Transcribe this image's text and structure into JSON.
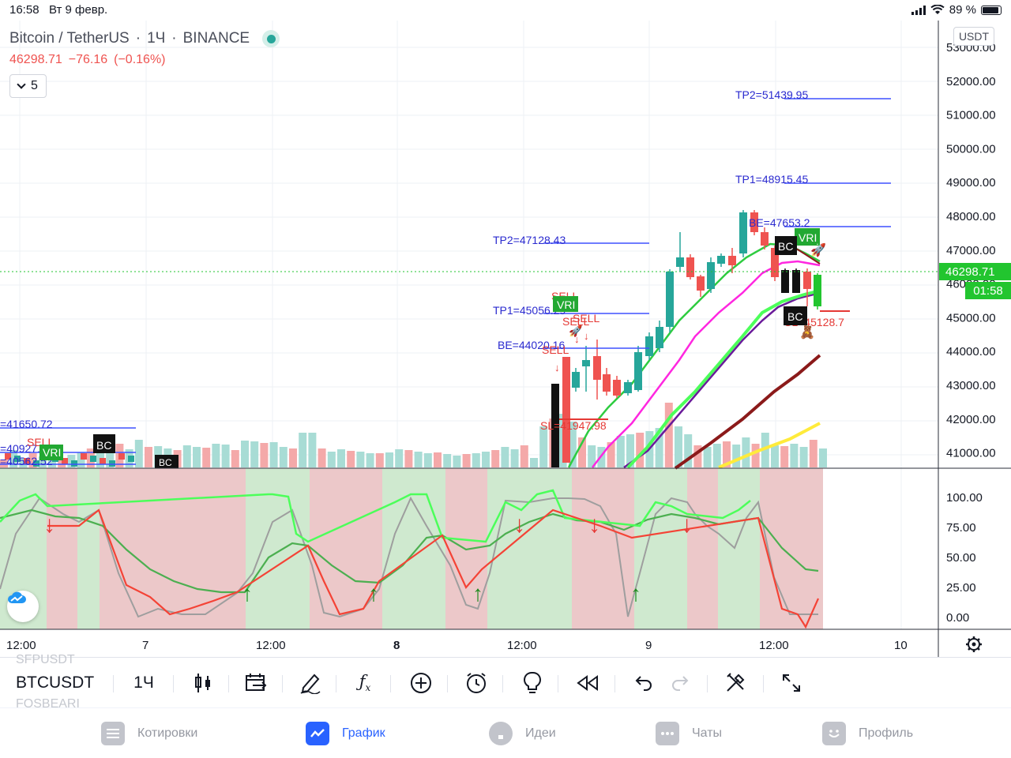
{
  "status_bar": {
    "time": "16:58",
    "date": "Вт 9 февр.",
    "battery": "89 %"
  },
  "legend": {
    "symbol_name": "Bitcoin / TetherUS",
    "interval": "1Ч",
    "exchange": "BINANCE",
    "last_price": "46298.71",
    "change": "−76.16",
    "change_pct": "(−0.16%)",
    "indicators_count": "5"
  },
  "price_axis": {
    "currency": "USDT",
    "ticks": [
      "53000.00",
      "52000.00",
      "51000.00",
      "50000.00",
      "49000.00",
      "48000.00",
      "47000.00",
      "46000.00",
      "45000.00",
      "44000.00",
      "43000.00",
      "42000.00",
      "41000.00"
    ],
    "current_price": "46298.71",
    "countdown": "01:58"
  },
  "osc_axis": {
    "ticks": [
      "100.00",
      "75.00",
      "50.00",
      "25.00",
      "0.00"
    ]
  },
  "time_axis": {
    "ticks": [
      "12:00",
      "7",
      "12:00",
      "8",
      "12:00",
      "9",
      "12:00",
      "10"
    ]
  },
  "annotations": {
    "tp2_right": "TP2=51439.95",
    "tp1_right": "TP1=48915.45",
    "be_right": "BE=47653.2",
    "sl_right": "SL=45128.7",
    "tp2_mid": "TP2=47128.43",
    "tp1_mid": "TP1=45056.29",
    "be_mid": "BE=44020.16",
    "sl_mid": "SL=41947.98",
    "left_1": "=41650.72",
    "left_2": "=40927.54",
    "left_3": "=40562.52",
    "sell": "SELL",
    "vri": "VRI",
    "bc": "BC"
  },
  "toolbar": {
    "symbol": "BTCUSDT",
    "interval": "1Ч",
    "ghost_above": "SFPUSDT",
    "ghost_below": "FOSBEARI"
  },
  "tabbar": {
    "quotes": "Котировки",
    "chart": "График",
    "ideas": "Идеи",
    "chats": "Чаты",
    "profile": "Профиль"
  },
  "colors": {
    "up": "#26a69a",
    "down": "#ef5350",
    "accent": "#2962ff",
    "live": "#22c52f"
  }
}
